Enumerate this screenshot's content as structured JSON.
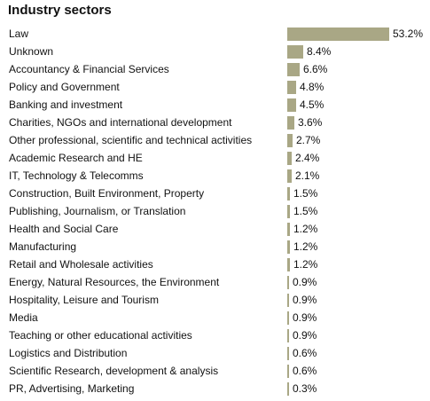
{
  "chart_data": {
    "type": "bar",
    "orientation": "horizontal",
    "title": "Industry sectors",
    "bar_color": "#a9a785",
    "categories": [
      "Law",
      "Unknown",
      "Accountancy & Financial Services",
      "Policy and Government",
      "Banking and investment",
      "Charities, NGOs and international development",
      "Other professional, scientific and technical activities",
      "Academic Research and HE",
      "IT, Technology & Telecomms",
      "Construction, Built Environment, Property",
      "Publishing, Journalism, or Translation",
      "Health and Social Care",
      "Manufacturing",
      "Retail and Wholesale activities",
      "Energy, Natural Resources, the Environment",
      "Hospitality, Leisure and Tourism",
      "Media",
      "Teaching or other educational activities",
      "Logistics and Distribution",
      "Scientific Research, development & analysis",
      "PR, Advertising, Marketing"
    ],
    "values": [
      53.2,
      8.4,
      6.6,
      4.8,
      4.5,
      3.6,
      2.7,
      2.4,
      2.1,
      1.5,
      1.5,
      1.2,
      1.2,
      1.2,
      0.9,
      0.9,
      0.9,
      0.9,
      0.6,
      0.6,
      0.3
    ],
    "value_labels": [
      "53.2%",
      "8.4%",
      "6.6%",
      "4.8%",
      "4.5%",
      "3.6%",
      "2.7%",
      "2.4%",
      "2.1%",
      "1.5%",
      "1.5%",
      "1.2%",
      "1.2%",
      "1.2%",
      "0.9%",
      "0.9%",
      "0.9%",
      "0.9%",
      "0.6%",
      "0.6%",
      "0.3%"
    ],
    "xlim": [
      0,
      53.2
    ]
  }
}
